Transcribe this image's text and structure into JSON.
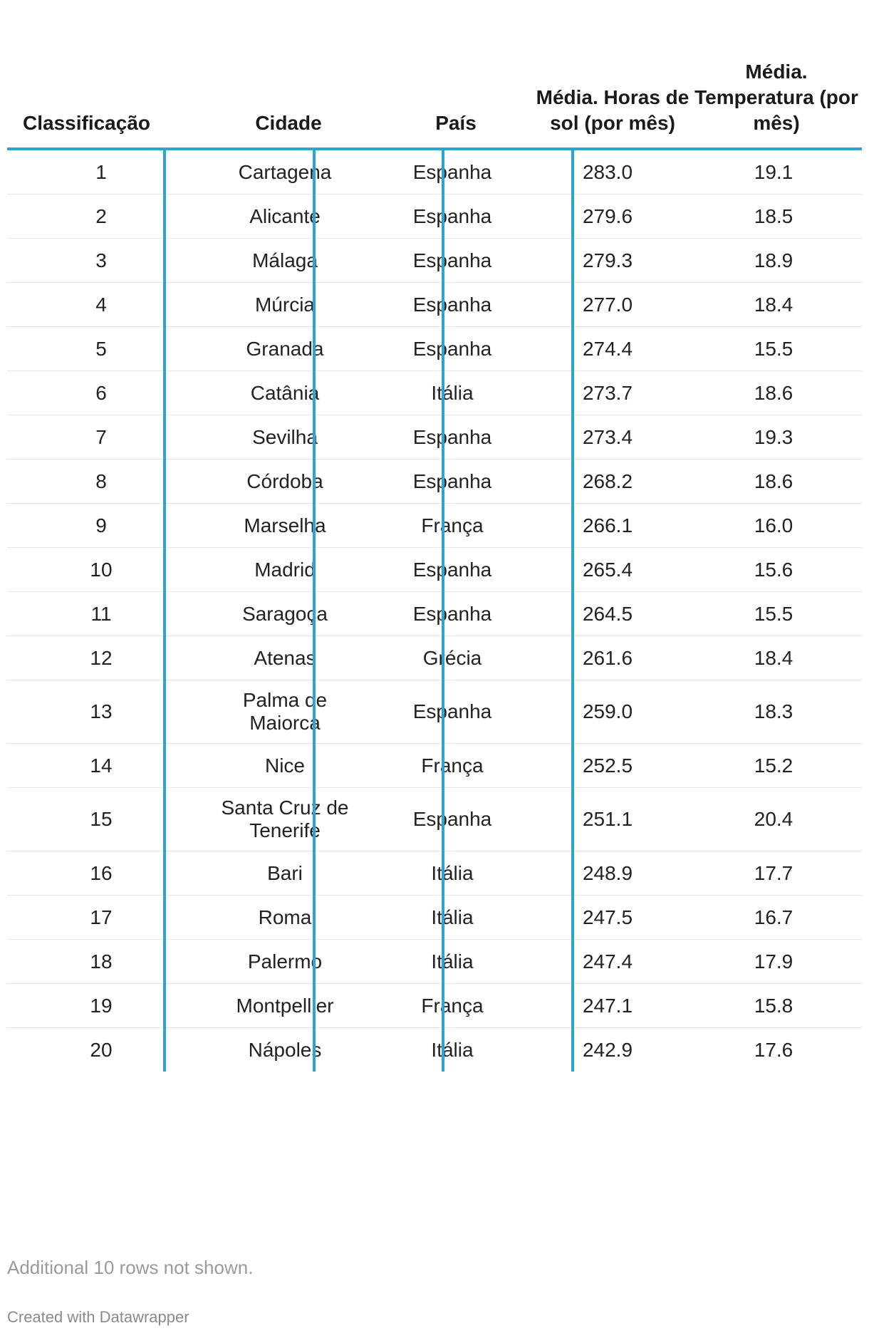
{
  "chart_data": {
    "type": "table",
    "columns": [
      "Classificação",
      "Cidade",
      "País",
      "Média. Horas de sol (por mês)",
      "Média. Temperatura (por mês)"
    ],
    "rows": [
      [
        "1",
        "Cartagena",
        "Espanha",
        "283.0",
        "19.1"
      ],
      [
        "2",
        "Alicante",
        "Espanha",
        "279.6",
        "18.5"
      ],
      [
        "3",
        "Málaga",
        "Espanha",
        "279.3",
        "18.9"
      ],
      [
        "4",
        "Múrcia",
        "Espanha",
        "277.0",
        "18.4"
      ],
      [
        "5",
        "Granada",
        "Espanha",
        "274.4",
        "15.5"
      ],
      [
        "6",
        "Catânia",
        "Itália",
        "273.7",
        "18.6"
      ],
      [
        "7",
        "Sevilha",
        "Espanha",
        "273.4",
        "19.3"
      ],
      [
        "8",
        "Córdoba",
        "Espanha",
        "268.2",
        "18.6"
      ],
      [
        "9",
        "Marselha",
        "França",
        "266.1",
        "16.0"
      ],
      [
        "10",
        "Madrid",
        "Espanha",
        "265.4",
        "15.6"
      ],
      [
        "11",
        "Saragoça",
        "Espanha",
        "264.5",
        "15.5"
      ],
      [
        "12",
        "Atenas",
        "Grécia",
        "261.6",
        "18.4"
      ],
      [
        "13",
        "Palma de Maiorca",
        "Espanha",
        "259.0",
        "18.3"
      ],
      [
        "14",
        "Nice",
        "França",
        "252.5",
        "15.2"
      ],
      [
        "15",
        "Santa Cruz de Tenerife",
        "Espanha",
        "251.1",
        "20.4"
      ],
      [
        "16",
        "Bari",
        "Itália",
        "248.9",
        "17.7"
      ],
      [
        "17",
        "Roma",
        "Itália",
        "247.5",
        "16.7"
      ],
      [
        "18",
        "Palermo",
        "Itália",
        "247.4",
        "17.9"
      ],
      [
        "19",
        "Montpellier",
        "França",
        "247.1",
        "15.8"
      ],
      [
        "20",
        "Nápoles",
        "Itália",
        "242.9",
        "17.6"
      ]
    ],
    "note": "Additional 10 rows not shown.",
    "credit": "Created with Datawrapper",
    "accent_color": "#2fa3d1"
  }
}
